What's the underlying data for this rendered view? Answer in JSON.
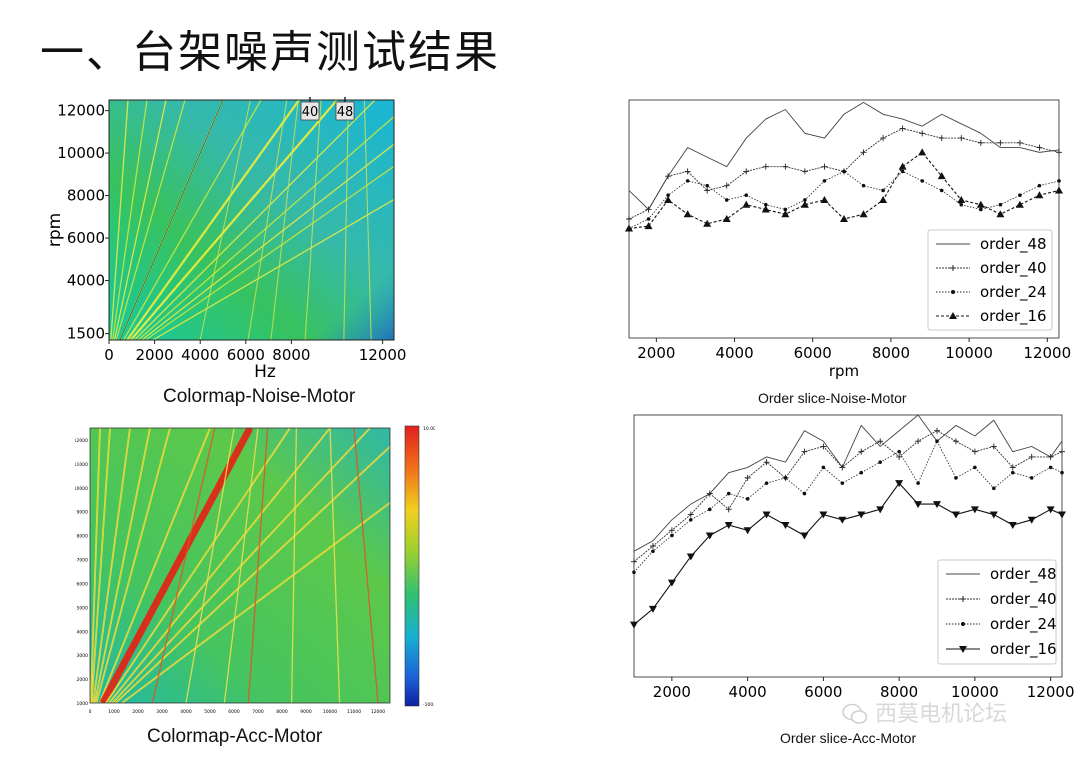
{
  "slide": {
    "title": "一、台架噪声测试结果",
    "watermark": "西莫电机论坛",
    "watermark_icon": "wechat-icon"
  },
  "chart_data": [
    {
      "id": "colormap-noise",
      "type": "heatmap",
      "caption": "Colormap-Noise-Motor",
      "xlabel": "Hz",
      "ylabel": "rpm",
      "xticks": [
        "0",
        "2000",
        "4000",
        "6000",
        "8000",
        "12000"
      ],
      "yticks": [
        "1500",
        "4000",
        "6000",
        "8000",
        "10000",
        "12000"
      ],
      "xlim": [
        0,
        12500
      ],
      "ylim": [
        1200,
        12500
      ],
      "order_markers": [
        "40",
        "48"
      ],
      "order_lines": [
        4,
        8,
        12,
        16,
        24,
        32,
        40,
        48,
        56,
        64,
        72,
        80,
        96
      ],
      "resonance_lines_hz": [
        6200,
        7800,
        8300,
        9300,
        10500,
        11200
      ]
    },
    {
      "id": "order-noise",
      "type": "line",
      "caption": "Order slice-Noise-Motor",
      "xlabel": "rpm",
      "xticks": [
        "2000",
        "4000",
        "6000",
        "8000",
        "10000",
        "12000"
      ],
      "xlim": [
        1300,
        12300
      ],
      "ylim": [
        0,
        100
      ],
      "x": [
        1300,
        1800,
        2300,
        2800,
        3300,
        3800,
        4300,
        4800,
        5300,
        5800,
        6300,
        6800,
        7300,
        7800,
        8300,
        8800,
        9300,
        9800,
        10300,
        10800,
        11300,
        11800,
        12300
      ],
      "series": [
        {
          "name": "order_48",
          "marker": "none",
          "values": [
            62,
            54,
            68,
            80,
            76,
            72,
            84,
            92,
            96,
            86,
            84,
            94,
            99,
            94,
            92,
            89,
            94,
            90,
            86,
            80,
            80,
            78,
            79
          ]
        },
        {
          "name": "order_40",
          "marker": "plus",
          "values": [
            50,
            54,
            68,
            70,
            62,
            64,
            70,
            72,
            72,
            70,
            72,
            70,
            78,
            84,
            88,
            86,
            84,
            84,
            82,
            82,
            82,
            80,
            78
          ]
        },
        {
          "name": "order_24",
          "marker": "dot",
          "values": [
            46,
            50,
            60,
            66,
            64,
            58,
            60,
            56,
            54,
            58,
            66,
            70,
            64,
            62,
            70,
            66,
            62,
            56,
            54,
            56,
            60,
            64,
            66
          ]
        },
        {
          "name": "order_16",
          "marker": "triangle-up",
          "values": [
            46,
            47,
            58,
            52,
            48,
            50,
            56,
            54,
            52,
            56,
            58,
            50,
            52,
            58,
            72,
            78,
            68,
            58,
            56,
            52,
            56,
            60,
            62
          ]
        }
      ]
    },
    {
      "id": "colormap-acc",
      "type": "heatmap",
      "caption": "Colormap-Acc-Motor",
      "xticks": [
        "0",
        "1000",
        "2000",
        "3000",
        "4000",
        "5000",
        "6000",
        "7000",
        "8000",
        "9000",
        "10000",
        "11000",
        "12000"
      ],
      "yticks": [
        "1000",
        "2000",
        "3000",
        "4000",
        "5000",
        "6000",
        "7000",
        "8000",
        "9000",
        "10000",
        "11000",
        "12000"
      ],
      "xlim": [
        0,
        12500
      ],
      "ylim": [
        1000,
        12500
      ],
      "colorbar_ticks": [
        "10.00",
        "-100.00"
      ],
      "order_lines": [
        2,
        4,
        8,
        12,
        16,
        24,
        32,
        40,
        48,
        56,
        64,
        80
      ],
      "strong_order": 32,
      "resonance_lines_hz": [
        5200,
        6000,
        7000,
        7400,
        8600,
        10000,
        11000
      ]
    },
    {
      "id": "order-acc",
      "type": "line",
      "caption": "Order slice-Acc-Motor",
      "xlabel": "rpm",
      "xticks": [
        "2000",
        "4000",
        "6000",
        "8000",
        "10000",
        "12000"
      ],
      "xlim": [
        1000,
        12300
      ],
      "ylim": [
        0,
        100
      ],
      "x": [
        1000,
        1500,
        2000,
        2500,
        3000,
        3500,
        4000,
        4500,
        5000,
        5500,
        6000,
        6500,
        7000,
        7500,
        8000,
        8500,
        9000,
        9500,
        10000,
        10500,
        11000,
        11500,
        12000,
        12300
      ],
      "series": [
        {
          "name": "order_48",
          "marker": "none",
          "values": [
            48,
            52,
            60,
            66,
            70,
            78,
            80,
            84,
            82,
            94,
            90,
            80,
            96,
            88,
            94,
            100,
            90,
            96,
            92,
            98,
            86,
            88,
            84,
            90
          ]
        },
        {
          "name": "order_40",
          "marker": "plus",
          "values": [
            44,
            50,
            56,
            62,
            70,
            64,
            76,
            82,
            76,
            86,
            88,
            80,
            86,
            90,
            84,
            90,
            94,
            90,
            86,
            88,
            80,
            84,
            84,
            86
          ]
        },
        {
          "name": "order_24",
          "marker": "dot",
          "values": [
            40,
            48,
            54,
            60,
            64,
            70,
            68,
            74,
            76,
            70,
            80,
            74,
            78,
            82,
            86,
            74,
            90,
            76,
            80,
            72,
            78,
            76,
            80,
            78
          ]
        },
        {
          "name": "order_16",
          "marker": "triangle-down",
          "values": [
            20,
            26,
            36,
            46,
            54,
            58,
            56,
            62,
            58,
            54,
            62,
            60,
            62,
            64,
            74,
            66,
            66,
            62,
            64,
            62,
            58,
            60,
            64,
            62
          ]
        }
      ]
    }
  ]
}
